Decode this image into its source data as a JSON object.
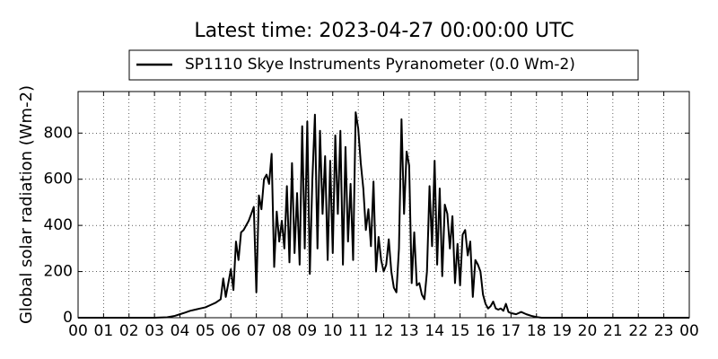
{
  "chart_data": {
    "type": "line",
    "title": "Latest time: 2023-04-27 00:00:00 UTC",
    "ylabel": "Global solar radiation (Wm-2)",
    "legend": "upper center",
    "grid": true,
    "xlim": [
      0,
      24
    ],
    "ylim": [
      0,
      980
    ],
    "yticks": [
      0,
      200,
      400,
      600,
      800
    ],
    "xticks": [
      {
        "value": 0,
        "label": "00"
      },
      {
        "value": 1,
        "label": "01"
      },
      {
        "value": 2,
        "label": "02"
      },
      {
        "value": 3,
        "label": "03"
      },
      {
        "value": 4,
        "label": "04"
      },
      {
        "value": 5,
        "label": "05"
      },
      {
        "value": 6,
        "label": "06"
      },
      {
        "value": 7,
        "label": "07"
      },
      {
        "value": 8,
        "label": "08"
      },
      {
        "value": 9,
        "label": "09"
      },
      {
        "value": 10,
        "label": "10"
      },
      {
        "value": 11,
        "label": "11"
      },
      {
        "value": 12,
        "label": "12"
      },
      {
        "value": 13,
        "label": "13"
      },
      {
        "value": 14,
        "label": "14"
      },
      {
        "value": 15,
        "label": "15"
      },
      {
        "value": 16,
        "label": "16"
      },
      {
        "value": 17,
        "label": "17"
      },
      {
        "value": 18,
        "label": "18"
      },
      {
        "value": 19,
        "label": "19"
      },
      {
        "value": 20,
        "label": "20"
      },
      {
        "value": 21,
        "label": "21"
      },
      {
        "value": 22,
        "label": "22"
      },
      {
        "value": 23,
        "label": "23"
      },
      {
        "value": 24,
        "label": "00"
      }
    ],
    "x": [
      0,
      3,
      3.5,
      3.8,
      4,
      4.2,
      4.4,
      4.6,
      4.8,
      5,
      5.2,
      5.4,
      5.6,
      5.7,
      5.8,
      5.9,
      6,
      6.1,
      6.2,
      6.3,
      6.4,
      6.5,
      6.6,
      6.7,
      6.8,
      6.9,
      7,
      7.1,
      7.2,
      7.3,
      7.4,
      7.5,
      7.6,
      7.7,
      7.8,
      7.9,
      8,
      8.1,
      8.2,
      8.3,
      8.4,
      8.5,
      8.6,
      8.7,
      8.8,
      8.9,
      9,
      9.1,
      9.2,
      9.3,
      9.4,
      9.5,
      9.6,
      9.7,
      9.8,
      9.9,
      10,
      10.1,
      10.2,
      10.3,
      10.4,
      10.5,
      10.6,
      10.7,
      10.8,
      10.9,
      11,
      11.1,
      11.2,
      11.3,
      11.4,
      11.5,
      11.6,
      11.7,
      11.8,
      11.9,
      12,
      12.1,
      12.2,
      12.3,
      12.4,
      12.5,
      12.6,
      12.7,
      12.8,
      12.9,
      13,
      13.1,
      13.2,
      13.3,
      13.4,
      13.5,
      13.6,
      13.7,
      13.8,
      13.9,
      14,
      14.1,
      14.2,
      14.3,
      14.4,
      14.5,
      14.6,
      14.7,
      14.8,
      14.9,
      15,
      15.1,
      15.2,
      15.3,
      15.4,
      15.5,
      15.6,
      15.7,
      15.8,
      15.9,
      16,
      16.1,
      16.2,
      16.3,
      16.4,
      16.5,
      16.6,
      16.7,
      16.8,
      16.9,
      17,
      17.2,
      17.4,
      17.6,
      17.8,
      18,
      18.2,
      24
    ],
    "series": [
      {
        "name": "SP1110 Skye Instruments Pyranometer (0.0 Wm-2)",
        "color": "#000000",
        "values": [
          0,
          0,
          2,
          8,
          15,
          22,
          30,
          35,
          40,
          45,
          55,
          65,
          80,
          170,
          90,
          150,
          210,
          120,
          330,
          250,
          370,
          380,
          400,
          420,
          450,
          480,
          110,
          530,
          470,
          600,
          620,
          580,
          710,
          220,
          460,
          330,
          420,
          300,
          570,
          240,
          670,
          280,
          540,
          230,
          830,
          300,
          850,
          190,
          600,
          880,
          300,
          810,
          450,
          700,
          250,
          680,
          280,
          790,
          450,
          810,
          230,
          740,
          330,
          580,
          250,
          890,
          820,
          670,
          560,
          380,
          470,
          310,
          590,
          200,
          350,
          250,
          200,
          230,
          340,
          200,
          130,
          110,
          300,
          860,
          450,
          720,
          660,
          150,
          370,
          140,
          150,
          100,
          80,
          200,
          570,
          310,
          680,
          230,
          560,
          180,
          490,
          450,
          300,
          440,
          150,
          320,
          140,
          360,
          380,
          270,
          330,
          90,
          250,
          230,
          200,
          100,
          60,
          40,
          50,
          70,
          40,
          35,
          40,
          30,
          60,
          25,
          20,
          15,
          25,
          15,
          8,
          3,
          0,
          0
        ]
      }
    ]
  }
}
